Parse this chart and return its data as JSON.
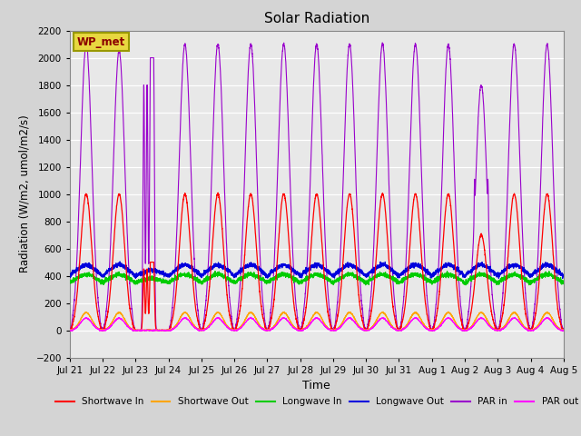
{
  "title": "Solar Radiation",
  "xlabel": "Time",
  "ylabel": "Radiation (W/m2, umol/m2/s)",
  "ylim": [
    -200,
    2200
  ],
  "yticks": [
    -200,
    0,
    200,
    400,
    600,
    800,
    1000,
    1200,
    1400,
    1600,
    1800,
    2000,
    2200
  ],
  "fig_bg": "#d4d4d4",
  "plot_bg": "#e8e8e8",
  "annotation_text": "WP_met",
  "annotation_color": "#8B0000",
  "annotation_bg": "#e8d840",
  "series": {
    "shortwave_in": {
      "color": "#ff0000",
      "label": "Shortwave In"
    },
    "shortwave_out": {
      "color": "#ffa500",
      "label": "Shortwave Out"
    },
    "longwave_in": {
      "color": "#00cc00",
      "label": "Longwave In"
    },
    "longwave_out": {
      "color": "#0000dd",
      "label": "Longwave Out"
    },
    "par_in": {
      "color": "#9900cc",
      "label": "PAR in"
    },
    "par_out": {
      "color": "#ff00ff",
      "label": "PAR out"
    }
  },
  "n_days": 15,
  "ppd": 288,
  "day_labels": [
    "Jul 21",
    "Jul 22",
    "Jul 23",
    "Jul 24",
    "Jul 25",
    "Jul 26",
    "Jul 27",
    "Jul 28",
    "Jul 29",
    "Jul 30",
    "Jul 31",
    "Aug 1",
    "Aug 2",
    "Aug 3",
    "Aug 4",
    "Aug 5"
  ],
  "cloudy_days": [
    2
  ],
  "partly_cloudy_days": [
    12
  ]
}
